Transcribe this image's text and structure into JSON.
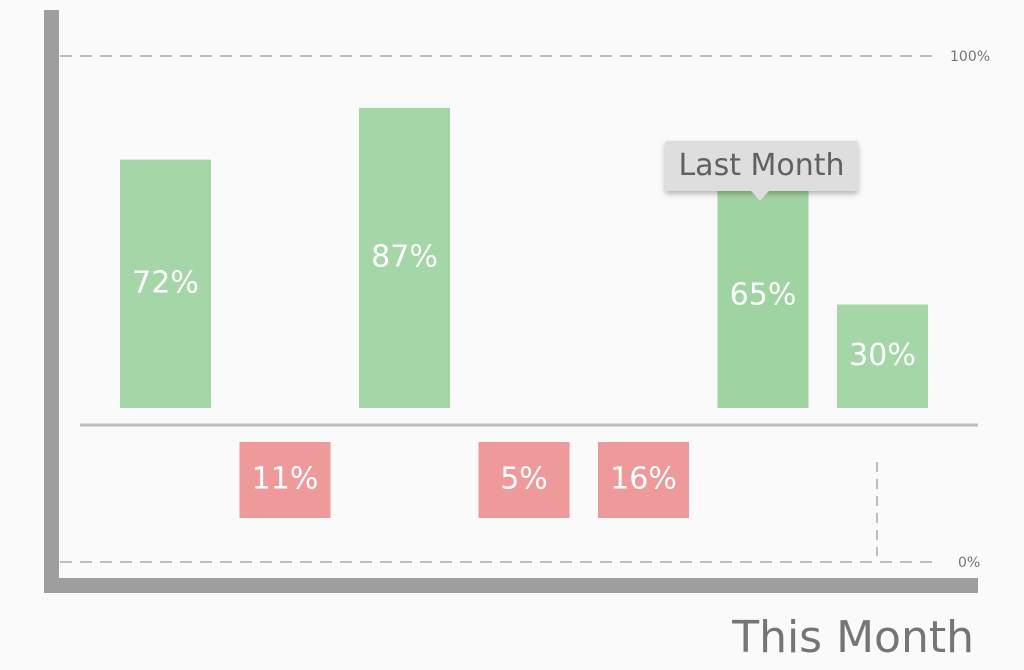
{
  "chart_data": {
    "type": "bar",
    "values": [
      72,
      11,
      87,
      5,
      16,
      65,
      30
    ],
    "labels": [
      "72%",
      "11%",
      "87%",
      "5%",
      "16%",
      "65%",
      "30%"
    ],
    "signs": [
      "positive",
      "negative",
      "positive",
      "negative",
      "negative",
      "positive",
      "positive"
    ],
    "y_ticks": [
      "100%",
      "0%"
    ],
    "xlabel": "This Month",
    "tooltip": {
      "text": "Last Month",
      "bar_index": 5
    },
    "grid": true
  },
  "colors": {
    "positive": "#a5d6a7",
    "positive_highlight": "#9fd3a1",
    "negative": "#ef9a9a",
    "axis": "#9e9e9e",
    "baseline": "#bdbdbd",
    "gridline": "#bdbdbd",
    "label_text": "#ffffff"
  }
}
